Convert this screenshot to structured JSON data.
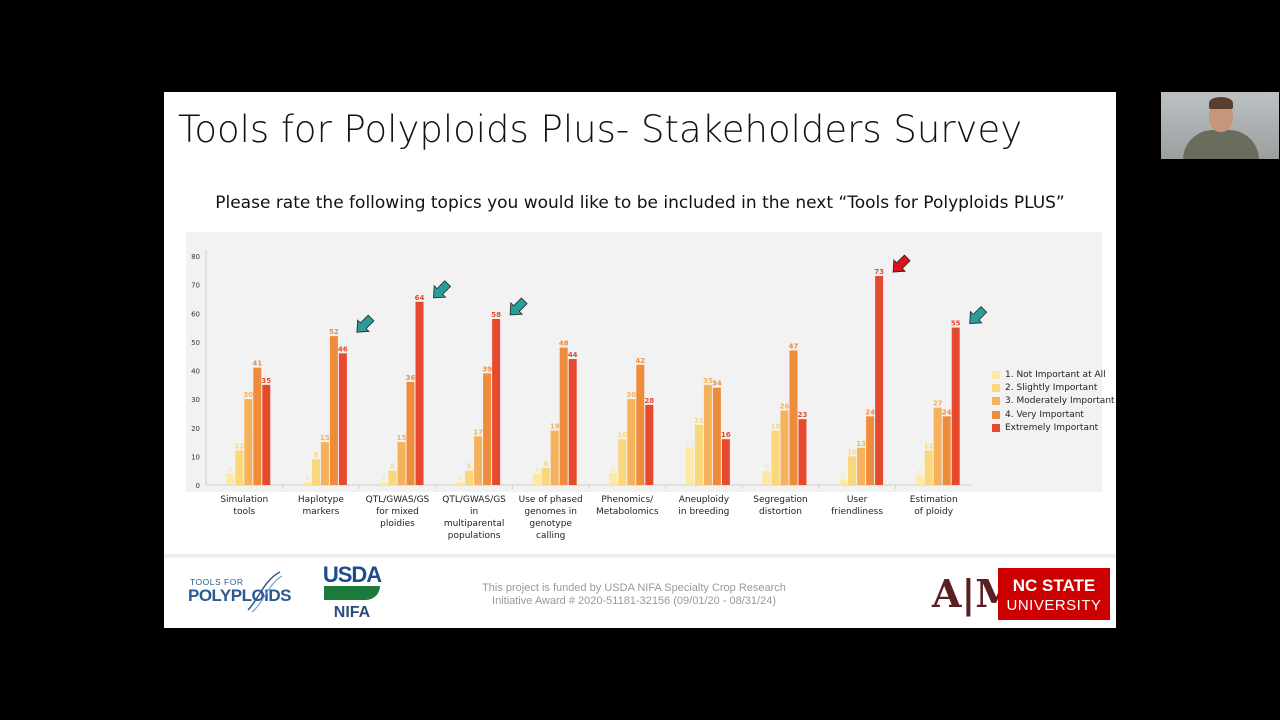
{
  "slide": {
    "title": "Tools for Polyploids Plus- Stakeholders Survey",
    "subtitle": "Please rate the following topics you would like to be included in the next “Tools for Polyploids PLUS”"
  },
  "chart_data": {
    "type": "bar",
    "ylim": [
      0,
      80
    ],
    "yticks": [
      0,
      10,
      20,
      30,
      40,
      50,
      60,
      70,
      80
    ],
    "categories": [
      [
        "Simulation",
        "tools"
      ],
      [
        "Haplotype",
        "markers"
      ],
      [
        "QTL/GWAS/GS",
        "for mixed",
        "ploidies"
      ],
      [
        "QTL/GWAS/GS",
        "in",
        "multiparental",
        "populations"
      ],
      [
        "Use of phased",
        "genomes in",
        "genotype",
        "calling"
      ],
      [
        "Phenomics/",
        "Metabolomics"
      ],
      [
        "Aneuploidy",
        "in breeding"
      ],
      [
        "Segregation",
        "distortion"
      ],
      [
        "User",
        "friendliness"
      ],
      [
        "Estimation",
        "of ploidy"
      ]
    ],
    "series": [
      {
        "name": "1. Not Important at All",
        "color": "#fde9a6",
        "values": [
          4,
          1,
          1,
          1,
          4,
          4,
          13,
          5,
          2,
          3
        ]
      },
      {
        "name": "2. Slightly Important",
        "color": "#fad77a",
        "values": [
          12,
          9,
          5,
          5,
          6,
          16,
          21,
          19,
          10,
          12
        ]
      },
      {
        "name": "3. Moderately Important",
        "color": "#f5b25a",
        "values": [
          30,
          15,
          15,
          17,
          19,
          30,
          35,
          26,
          13,
          27
        ]
      },
      {
        "name": "4. Very Important",
        "color": "#ef8c3c",
        "values": [
          41,
          52,
          36,
          39,
          48,
          42,
          34,
          47,
          24,
          24
        ]
      },
      {
        "name": "Extremely Important",
        "color": "#e64a2e",
        "values": [
          35,
          46,
          64,
          58,
          44,
          28,
          16,
          23,
          73,
          55
        ]
      }
    ],
    "arrows": [
      {
        "category_index": 1,
        "color": "#2a9d9a"
      },
      {
        "category_index": 2,
        "color": "#2a9d9a"
      },
      {
        "category_index": 3,
        "color": "#2a9d9a"
      },
      {
        "category_index": 8,
        "color": "#e0101a"
      },
      {
        "category_index": 9,
        "color": "#2a9d9a"
      }
    ],
    "legend_position": "right"
  },
  "footer": {
    "funding_line1": "This project is funded by USDA NIFA Specialty Crop Research",
    "funding_line2": "Initiative Award # 2020-51181-32156 (09/01/20 - 08/31/24)",
    "logo_tfp_small": "TOOLS FOR",
    "logo_tfp_big": "POLYPLOIDS",
    "logo_usda": "USDA",
    "logo_nifa": "NIFA",
    "logo_tam": "A|M",
    "logo_ncsu_line1": "NC STATE",
    "logo_ncsu_line2": "UNIVERSITY"
  }
}
